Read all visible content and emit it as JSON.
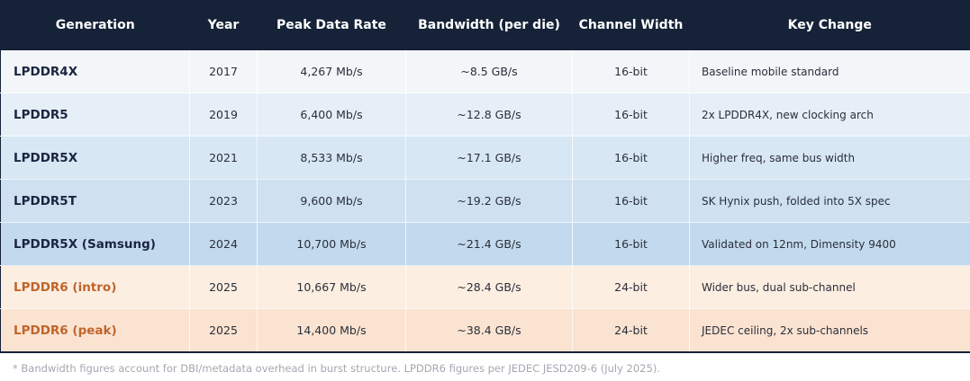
{
  "table": {
    "header": [
      "Generation",
      "Year",
      "Peak Data Rate",
      "Bandwidth (per die)",
      "Channel Width",
      "Key Change"
    ],
    "rows": [
      [
        "LPDDR4X",
        "2017",
        "4,267 Mb/s",
        "~8.5 GB/s",
        "16-bit",
        "Baseline mobile standard"
      ],
      [
        "LPDDR5",
        "2019",
        "6,400 Mb/s",
        "~12.8 GB/s",
        "16-bit",
        "2x LPDDR4X, new clocking arch"
      ],
      [
        "LPDDR5X",
        "2021",
        "8,533 Mb/s",
        "~17.1 GB/s",
        "16-bit",
        "Higher freq, same bus width"
      ],
      [
        "LPDDR5T",
        "2023",
        "9,600 Mb/s",
        "~19.2 GB/s",
        "16-bit",
        "SK Hynix push, folded into 5X spec"
      ],
      [
        "LPDDR5X (Samsung)",
        "2024",
        "10,700 Mb/s",
        "~21.4 GB/s",
        "16-bit",
        "Validated on 12nm, Dimensity 9400"
      ],
      [
        "LPDDR6 (intro)",
        "2025",
        "10,667 Mb/s",
        "~28.4 GB/s",
        "24-bit",
        "Wider bus, dual sub-channel"
      ],
      [
        "LPDDR6 (peak)",
        "2025",
        "14,400 Mb/s",
        "~38.4 GB/s",
        "24-bit",
        "JEDEC ceiling, 2x sub-channels"
      ]
    ],
    "footnote": "* Bandwidth figures account for DBI/metadata overhead in burst structure. LPDDR6 figures per JEDEC JESD209-6 (July 2025)."
  }
}
